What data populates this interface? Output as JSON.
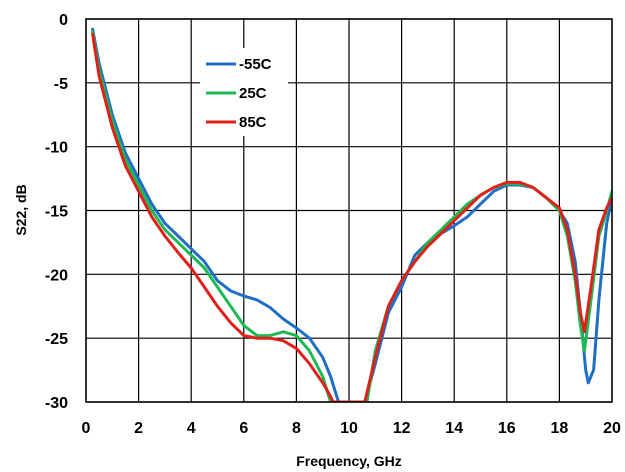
{
  "chart_data": {
    "type": "line",
    "title": "",
    "xlabel": "Frequency, GHz",
    "ylabel": "S22, dB",
    "xlim": [
      0,
      20
    ],
    "ylim": [
      -30,
      0
    ],
    "x_ticks": [
      0,
      2,
      4,
      6,
      8,
      10,
      12,
      14,
      16,
      18,
      20
    ],
    "y_ticks": [
      0,
      -5,
      -10,
      -15,
      -20,
      -25,
      -30
    ],
    "grid": true,
    "legend_position": "top-left",
    "series": [
      {
        "name": "-55C",
        "color": "#1f6fc5",
        "x": [
          0.25,
          0.5,
          1,
          1.5,
          2,
          2.5,
          3,
          3.5,
          4,
          4.5,
          5,
          5.5,
          6,
          6.5,
          7,
          7.5,
          8,
          8.5,
          9,
          9.3,
          9.6,
          10.6,
          11,
          11.5,
          12,
          12.5,
          13,
          13.5,
          14,
          14.5,
          15,
          15.5,
          16,
          16.5,
          17,
          17.5,
          18,
          18.3,
          18.6,
          18.8,
          19,
          19.1,
          19.3,
          19.5,
          19.8,
          20
        ],
        "y": [
          -0.8,
          -3.5,
          -7.5,
          -10.5,
          -12.5,
          -14.5,
          -16,
          -17,
          -18,
          -19,
          -20.5,
          -21.3,
          -21.7,
          -22,
          -22.6,
          -23.5,
          -24.2,
          -25,
          -26.5,
          -28,
          -30,
          -30,
          -27,
          -23,
          -21,
          -18.5,
          -17.5,
          -16.8,
          -16.2,
          -15.5,
          -14.5,
          -13.5,
          -13,
          -13,
          -13.2,
          -14,
          -15,
          -16,
          -19,
          -23,
          -27.5,
          -28.5,
          -27.5,
          -22,
          -16,
          -14
        ]
      },
      {
        "name": "25C",
        "color": "#1db954",
        "x": [
          0.25,
          0.5,
          1,
          1.5,
          2,
          2.5,
          3,
          3.5,
          4,
          4.5,
          5,
          5.5,
          6,
          6.5,
          7,
          7.5,
          8,
          8.5,
          9,
          9.3,
          9.6,
          10.6,
          11,
          11.5,
          12,
          12.5,
          13,
          13.5,
          14,
          14.5,
          15,
          15.5,
          16,
          16.5,
          17,
          17.5,
          18,
          18.3,
          18.6,
          18.8,
          18.95,
          19.2,
          19.5,
          19.8,
          20
        ],
        "y": [
          -1,
          -4,
          -8,
          -11,
          -13,
          -15,
          -16.5,
          -17.5,
          -18.5,
          -19.5,
          -21,
          -22.5,
          -24,
          -24.8,
          -24.8,
          -24.5,
          -24.8,
          -26,
          -28,
          -30,
          -31,
          -31,
          -26,
          -22.5,
          -20.5,
          -19,
          -17.5,
          -16.5,
          -15.5,
          -14.5,
          -13.8,
          -13.2,
          -12.9,
          -12.9,
          -13.2,
          -14,
          -15,
          -17,
          -20.5,
          -24,
          -26,
          -22,
          -17,
          -15,
          -13.5
        ]
      },
      {
        "name": "85C",
        "color": "#e0201a",
        "x": [
          0.25,
          0.5,
          1,
          1.5,
          2,
          2.5,
          3,
          3.5,
          4,
          4.5,
          5,
          5.5,
          6,
          6.5,
          7,
          7.5,
          8,
          8.5,
          9,
          9.2,
          9.4,
          10.6,
          11,
          11.5,
          12,
          12.5,
          13,
          13.5,
          14,
          14.5,
          15,
          15.5,
          16,
          16.5,
          17,
          17.5,
          18,
          18.3,
          18.6,
          18.8,
          18.95,
          19.2,
          19.5,
          19.8,
          20
        ],
        "y": [
          -1.2,
          -4.5,
          -8.5,
          -11.5,
          -13.5,
          -15.5,
          -17,
          -18.3,
          -19.5,
          -21,
          -22.5,
          -23.8,
          -24.8,
          -25,
          -25,
          -25.2,
          -25.8,
          -27,
          -28.5,
          -29.2,
          -30,
          -30,
          -26.5,
          -22.5,
          -20.5,
          -19,
          -17.8,
          -16.8,
          -15.8,
          -14.8,
          -13.8,
          -13.2,
          -12.8,
          -12.8,
          -13.2,
          -14,
          -14.8,
          -16.5,
          -20,
          -23,
          -24.5,
          -21,
          -16.5,
          -14.8,
          -14
        ]
      }
    ]
  }
}
